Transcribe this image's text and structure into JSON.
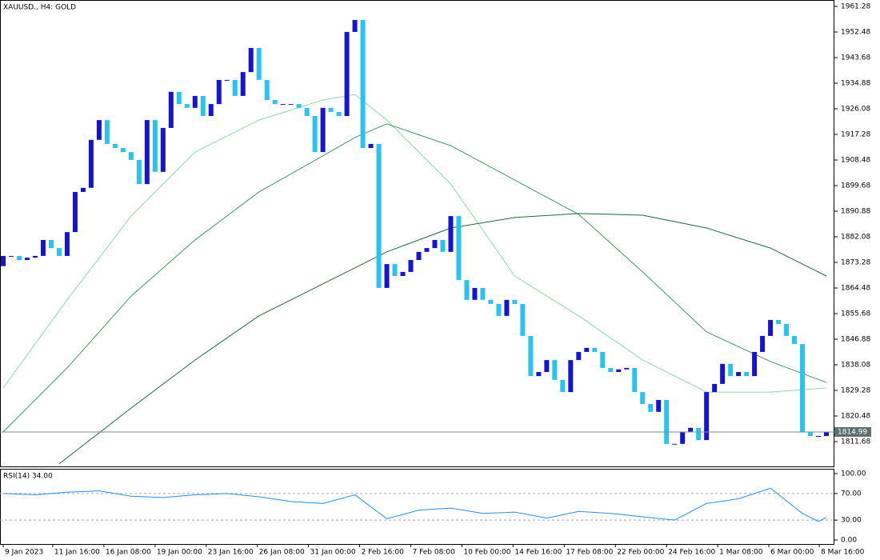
{
  "chart_data": [
    {
      "type": "candlestick",
      "title": "XAUUSD., H4:  GOLD",
      "xlim": [
        -0.4,
        104
      ],
      "ylim": [
        1803.15,
        1963.48
      ],
      "yticks": [
        1811.68,
        1820.48,
        1829.28,
        1838.08,
        1846.88,
        1855.68,
        1864.48,
        1873.28,
        1882.08,
        1890.88,
        1899.68,
        1908.48,
        1917.28,
        1926.08,
        1934.88,
        1943.68,
        1952.48,
        1961.28
      ],
      "up_color": "#1414d2",
      "down_color": "#28c3ef",
      "open": [
        1872.0,
        1875.5,
        1875.5,
        1874.1,
        1874.9,
        1875.5,
        1881.0,
        1878.2,
        1875.5,
        1883.7,
        1897.5,
        1898.9,
        1915.4,
        1922.2,
        1914.0,
        1912.6,
        1911.2,
        1908.5,
        1900.2,
        1922.2,
        1904.4,
        1919.5,
        1931.9,
        1927.7,
        1926.4,
        1930.5,
        1923.6,
        1927.7,
        1936.0,
        1936.0,
        1930.5,
        1938.7,
        1947.0,
        1936.0,
        1929.1,
        1927.7,
        1927.7,
        1927.7,
        1926.4,
        1923.6,
        1911.2,
        1926.4,
        1925.0,
        1923.6,
        1952.5,
        1956.6,
        1912.6,
        1914.0,
        1864.5,
        1872.7,
        1868.6,
        1870.0,
        1874.1,
        1876.9,
        1878.2,
        1881.0,
        1876.9,
        1889.2,
        1867.2,
        1860.4,
        1864.5,
        1860.4,
        1859.0,
        1854.9,
        1860.4,
        1859.0,
        1848.0,
        1834.2,
        1835.6,
        1839.7,
        1832.9,
        1828.7,
        1839.7,
        1842.5,
        1843.9,
        1842.5,
        1837.0,
        1835.6,
        1836.5,
        1837.0,
        1828.7,
        1824.6,
        1821.9,
        1826.0,
        1810.9,
        1810.9,
        1815.0,
        1816.4,
        1812.2,
        1828.7,
        1831.5,
        1838.4,
        1834.2,
        1835.6,
        1834.2,
        1842.5,
        1848.0,
        1853.5,
        1852.1,
        1848.0,
        1845.2,
        1815.0,
        1813.6,
        1813.6
      ],
      "close": [
        1875.5,
        1875.5,
        1874.1,
        1874.9,
        1875.5,
        1881.0,
        1878.2,
        1875.5,
        1883.7,
        1897.5,
        1898.9,
        1915.4,
        1922.2,
        1914.0,
        1912.6,
        1911.2,
        1908.5,
        1900.2,
        1922.2,
        1904.4,
        1919.5,
        1931.9,
        1927.7,
        1926.4,
        1930.5,
        1923.6,
        1927.7,
        1936.0,
        1936.0,
        1930.5,
        1938.7,
        1947.0,
        1936.0,
        1929.1,
        1927.7,
        1927.7,
        1927.7,
        1926.4,
        1923.6,
        1911.2,
        1926.4,
        1925.0,
        1923.6,
        1952.5,
        1956.6,
        1912.6,
        1914.0,
        1864.5,
        1872.7,
        1868.6,
        1870.0,
        1874.1,
        1876.9,
        1878.2,
        1881.0,
        1876.9,
        1889.2,
        1867.2,
        1860.4,
        1864.5,
        1860.4,
        1859.0,
        1854.9,
        1860.4,
        1859.0,
        1848.0,
        1834.2,
        1835.6,
        1839.7,
        1832.9,
        1828.7,
        1839.7,
        1842.5,
        1843.9,
        1842.5,
        1837.0,
        1835.6,
        1836.5,
        1837.0,
        1828.7,
        1824.6,
        1821.9,
        1826.0,
        1810.9,
        1810.9,
        1815.0,
        1816.4,
        1812.2,
        1828.7,
        1831.5,
        1838.4,
        1834.2,
        1835.6,
        1834.2,
        1842.5,
        1848.0,
        1853.5,
        1852.1,
        1848.0,
        1845.2,
        1815.0,
        1813.6,
        1813.6,
        1815.0
      ],
      "moving_averages": [
        {
          "color": "#8fd9a8",
          "x": [
            0,
            8,
            16,
            24,
            32,
            40,
            44,
            48,
            56,
            64,
            72,
            80,
            88,
            96,
            103
          ],
          "values": [
            1830.1,
            1860.4,
            1889.2,
            1911.2,
            1922.2,
            1929.1,
            1931.0,
            1922.2,
            1900.2,
            1868.6,
            1854.9,
            1839.7,
            1828.7,
            1828.7,
            1830.1
          ]
        },
        {
          "color": "#3c9a5c",
          "x": [
            0,
            8,
            16,
            24,
            32,
            40,
            44,
            48,
            56,
            64,
            72,
            80,
            88,
            96,
            103
          ],
          "values": [
            1815.0,
            1837.0,
            1861.7,
            1881.0,
            1897.5,
            1909.9,
            1916.2,
            1920.9,
            1913.4,
            1901.6,
            1889.8,
            1870.0,
            1849.4,
            1839.2,
            1832.0
          ]
        },
        {
          "color": "#1e6b3a",
          "x": [
            7,
            16,
            24,
            32,
            40,
            48,
            56,
            64,
            72,
            80,
            88,
            96,
            103
          ],
          "values": [
            1804.0,
            1823.2,
            1839.7,
            1854.9,
            1865.9,
            1876.9,
            1885.1,
            1888.7,
            1890.1,
            1889.5,
            1885.1,
            1878.2,
            1868.6
          ]
        }
      ],
      "bid": 1814.99
    },
    {
      "type": "line",
      "label": "RSI(14) 34.00",
      "color": "#1e90ff",
      "xlim": [
        -0.4,
        104
      ],
      "ylim": [
        -6,
        106
      ],
      "x": [
        0,
        4,
        8,
        12,
        16,
        20,
        24,
        28,
        32,
        36,
        40,
        44,
        48,
        52,
        56,
        60,
        64,
        68,
        72,
        76,
        80,
        84,
        88,
        92,
        96,
        100,
        102,
        103
      ],
      "values": [
        70,
        68,
        72,
        74,
        66,
        64,
        68,
        70,
        65,
        58,
        55,
        68,
        32,
        45,
        48,
        40,
        42,
        33,
        43,
        40,
        35,
        30,
        55,
        62,
        78,
        40,
        28,
        34
      ],
      "yticks": [
        {
          "value": 100,
          "label": "100.00"
        },
        {
          "value": 70,
          "label": "70.00"
        },
        {
          "value": 30,
          "label": "30.00"
        },
        {
          "value": 0,
          "label": "0.00"
        }
      ],
      "levels": [
        70,
        30
      ],
      "xticks": [
        {
          "value": 0,
          "label": "9 Jan 2023"
        },
        {
          "value": 6.2,
          "label": "11 Jan 16:00"
        },
        {
          "value": 12.6,
          "label": "16 Jan 08:00"
        },
        {
          "value": 19,
          "label": "19 Jan 00:00"
        },
        {
          "value": 25.4,
          "label": "23 Jan 16:00"
        },
        {
          "value": 31.8,
          "label": "26 Jan 08:00"
        },
        {
          "value": 38.2,
          "label": "31 Jan 00:00"
        },
        {
          "value": 44.6,
          "label": "2 Feb 16:00"
        },
        {
          "value": 51,
          "label": "7 Feb 08:00"
        },
        {
          "value": 57.4,
          "label": "10 Feb 00:00"
        },
        {
          "value": 63.8,
          "label": "14 Feb 16:00"
        },
        {
          "value": 70.2,
          "label": "17 Feb 08:00"
        },
        {
          "value": 76.6,
          "label": "22 Feb 00:00"
        },
        {
          "value": 83,
          "label": "24 Feb 16:00"
        },
        {
          "value": 89.4,
          "label": "1 Mar 08:00"
        },
        {
          "value": 95.8,
          "label": "6 Mar 00:00"
        },
        {
          "value": 102.1,
          "label": "8 Mar 16:00"
        }
      ]
    }
  ]
}
